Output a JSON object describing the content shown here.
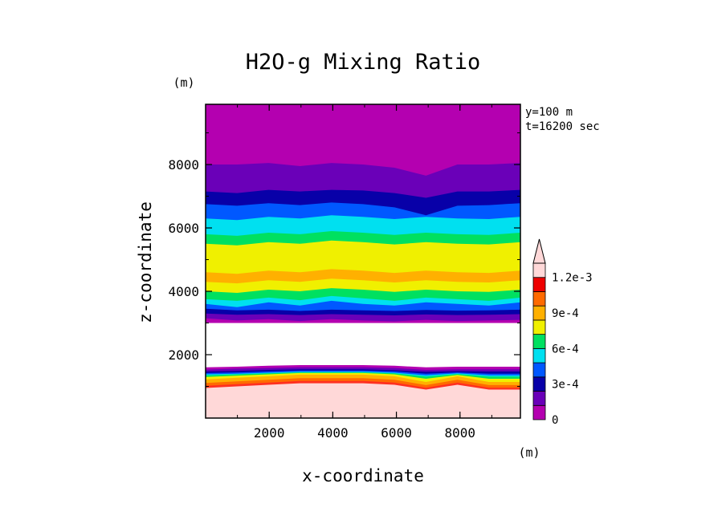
{
  "chart_data": {
    "type": "contour",
    "title": "H2O-g Mixing Ratio",
    "xlabel": "x-coordinate",
    "ylabel": "z-coordinate",
    "x_unit": "(m)",
    "y_unit": "(m)",
    "xlim": [
      0,
      9900
    ],
    "ylim": [
      0,
      9900
    ],
    "x_ticks": [
      2000,
      4000,
      6000,
      8000
    ],
    "y_ticks": [
      2000,
      4000,
      6000,
      8000
    ],
    "x_tick_labels": [
      "2000",
      "4000",
      "6000",
      "8000"
    ],
    "y_tick_labels": [
      "2000",
      "4000",
      "6000",
      "8000"
    ],
    "annotations": [
      "y=100 m",
      "t=16200 sec"
    ],
    "colorbar": {
      "levels": [
        0,
        0.00015,
        0.0003,
        0.00045,
        0.0006,
        0.00075,
        0.0009,
        0.00105,
        0.0012
      ],
      "tick_labels": [
        "0",
        "3e-4",
        "6e-4",
        "9e-4",
        "1.2e-3"
      ],
      "colors": [
        "#b400b0",
        "#6a00b8",
        "#0800a8",
        "#0058ff",
        "#00e0f0",
        "#00e060",
        "#f0f000",
        "#ffb000",
        "#ff6a00",
        "#ee0000",
        "#ffd8d8"
      ],
      "extend": "max"
    },
    "bands": [
      {
        "fill": "#ffd8d8",
        "top": [
          950,
          1000,
          1050,
          1100,
          1100,
          1100,
          1050,
          900,
          1050,
          900,
          900
        ]
      },
      {
        "fill": "#ff3020",
        "top": [
          1020,
          1070,
          1120,
          1170,
          1170,
          1170,
          1120,
          960,
          1120,
          960,
          960
        ]
      },
      {
        "fill": "#ff6a00",
        "top": [
          1110,
          1160,
          1210,
          1260,
          1260,
          1260,
          1210,
          1040,
          1210,
          1040,
          1040
        ]
      },
      {
        "fill": "#ffb000",
        "top": [
          1220,
          1270,
          1320,
          1370,
          1370,
          1370,
          1320,
          1140,
          1320,
          1140,
          1140
        ]
      },
      {
        "fill": "#f0f000",
        "top": [
          1300,
          1340,
          1380,
          1420,
          1420,
          1420,
          1380,
          1240,
          1360,
          1240,
          1240
        ]
      },
      {
        "fill": "#00e060",
        "top": [
          1350,
          1380,
          1410,
          1440,
          1440,
          1440,
          1410,
          1310,
          1390,
          1310,
          1310
        ]
      },
      {
        "fill": "#00e0f0",
        "top": [
          1380,
          1400,
          1430,
          1460,
          1460,
          1460,
          1430,
          1350,
          1410,
          1350,
          1350
        ]
      },
      {
        "fill": "#0058ff",
        "top": [
          1420,
          1440,
          1470,
          1500,
          1500,
          1500,
          1470,
          1400,
          1440,
          1400,
          1400
        ]
      },
      {
        "fill": "#0800a8",
        "top": [
          1470,
          1490,
          1520,
          1540,
          1540,
          1540,
          1510,
          1460,
          1480,
          1470,
          1470
        ]
      },
      {
        "fill": "#6a00b8",
        "top": [
          1530,
          1560,
          1580,
          1600,
          1600,
          1600,
          1580,
          1520,
          1540,
          1540,
          1540
        ]
      },
      {
        "fill": "#b400b0",
        "top": [
          1600,
          1620,
          1650,
          1670,
          1670,
          1670,
          1650,
          1600,
          1620,
          1620,
          1620
        ]
      },
      {
        "fill": "#ffffff",
        "top": [
          3000,
          3000,
          3000,
          3000,
          3000,
          3000,
          3000,
          3000,
          3000,
          3000,
          3000
        ]
      },
      {
        "fill": "#b400b0",
        "top": [
          3150,
          3080,
          3120,
          3060,
          3120,
          3080,
          3050,
          3100,
          3060,
          3080,
          3100
        ]
      },
      {
        "fill": "#6a00b8",
        "top": [
          3300,
          3260,
          3280,
          3250,
          3280,
          3260,
          3240,
          3270,
          3250,
          3260,
          3280
        ]
      },
      {
        "fill": "#0800a8",
        "top": [
          3450,
          3400,
          3420,
          3380,
          3420,
          3400,
          3380,
          3410,
          3390,
          3400,
          3420
        ]
      },
      {
        "fill": "#0058ff",
        "top": [
          3600,
          3500,
          3650,
          3550,
          3700,
          3600,
          3550,
          3650,
          3600,
          3550,
          3650
        ]
      },
      {
        "fill": "#00e0f0",
        "top": [
          3750,
          3700,
          3800,
          3720,
          3850,
          3780,
          3700,
          3800,
          3750,
          3700,
          3800
        ]
      },
      {
        "fill": "#00e060",
        "top": [
          4000,
          3950,
          4050,
          4000,
          4100,
          4050,
          3980,
          4050,
          4000,
          3980,
          4050
        ]
      },
      {
        "fill": "#f0f000",
        "top": [
          4300,
          4250,
          4350,
          4300,
          4400,
          4350,
          4280,
          4350,
          4300,
          4280,
          4350
        ]
      },
      {
        "fill": "#ffb000",
        "top": [
          4600,
          4550,
          4650,
          4600,
          4700,
          4650,
          4580,
          4650,
          4600,
          4580,
          4650
        ]
      },
      {
        "fill": "#f0f000",
        "top": [
          5500,
          5450,
          5550,
          5500,
          5600,
          5550,
          5480,
          5550,
          5500,
          5480,
          5550
        ]
      },
      {
        "fill": "#00e060",
        "top": [
          5800,
          5750,
          5850,
          5800,
          5900,
          5850,
          5780,
          5850,
          5800,
          5780,
          5850
        ]
      },
      {
        "fill": "#00e0f0",
        "top": [
          6300,
          6250,
          6350,
          6300,
          6400,
          6350,
          6280,
          6350,
          6300,
          6280,
          6350
        ]
      },
      {
        "fill": "#0058ff",
        "top": [
          6750,
          6700,
          6780,
          6720,
          6800,
          6750,
          6650,
          6400,
          6700,
          6720,
          6780
        ]
      },
      {
        "fill": "#0800a8",
        "top": [
          7150,
          7100,
          7200,
          7150,
          7200,
          7180,
          7100,
          6950,
          7150,
          7150,
          7200
        ]
      },
      {
        "fill": "#6a00b8",
        "top": [
          8000,
          8000,
          8050,
          7950,
          8050,
          8000,
          7900,
          7650,
          8000,
          8000,
          8050
        ]
      },
      {
        "fill": "#b400b0",
        "top": [
          8900,
          8850,
          8500,
          8250,
          8750,
          8800,
          8600,
          8500,
          8650,
          8800,
          8950
        ]
      }
    ]
  }
}
